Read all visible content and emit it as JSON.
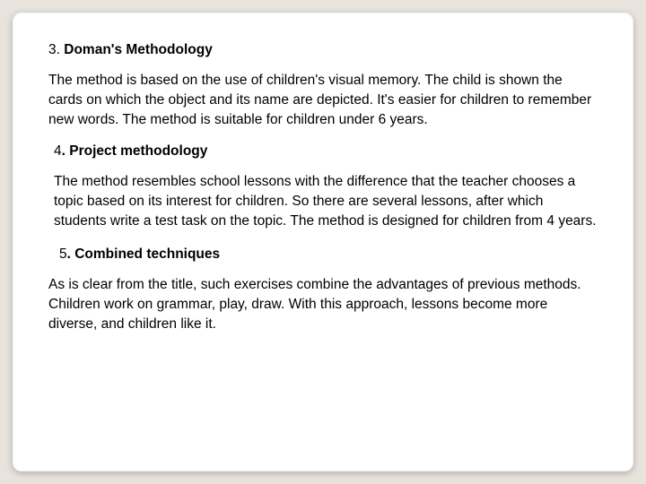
{
  "slide": {
    "background_color": "#e8e4dd",
    "card_color": "#ffffff",
    "text_color": "#000000",
    "font_family": "Verdana",
    "heading_fontsize": 15.5,
    "body_fontsize": 15.5,
    "sections": [
      {
        "number": "3.",
        "title": "Doman's Methodology",
        "body": "The method is based on the use of children's visual memory. The child is shown the cards on which the object and its name are depicted. It's easier for children to remember new words. The method is suitable for children under 6 years."
      },
      {
        "number": "4",
        "title": ". Project methodology",
        "body": "The method resembles school lessons with the difference that the teacher chooses a topic based on its interest for children. So there are several lessons, after which students write a test task on the topic. The method is designed for children from 4 years."
      },
      {
        "number": "5",
        "title": ". Combined techniques",
        "body": "As is clear from the title, such exercises combine the advantages of previous methods. Children work on grammar, play, draw. With this approach, lessons become more diverse, and children like it."
      }
    ]
  }
}
